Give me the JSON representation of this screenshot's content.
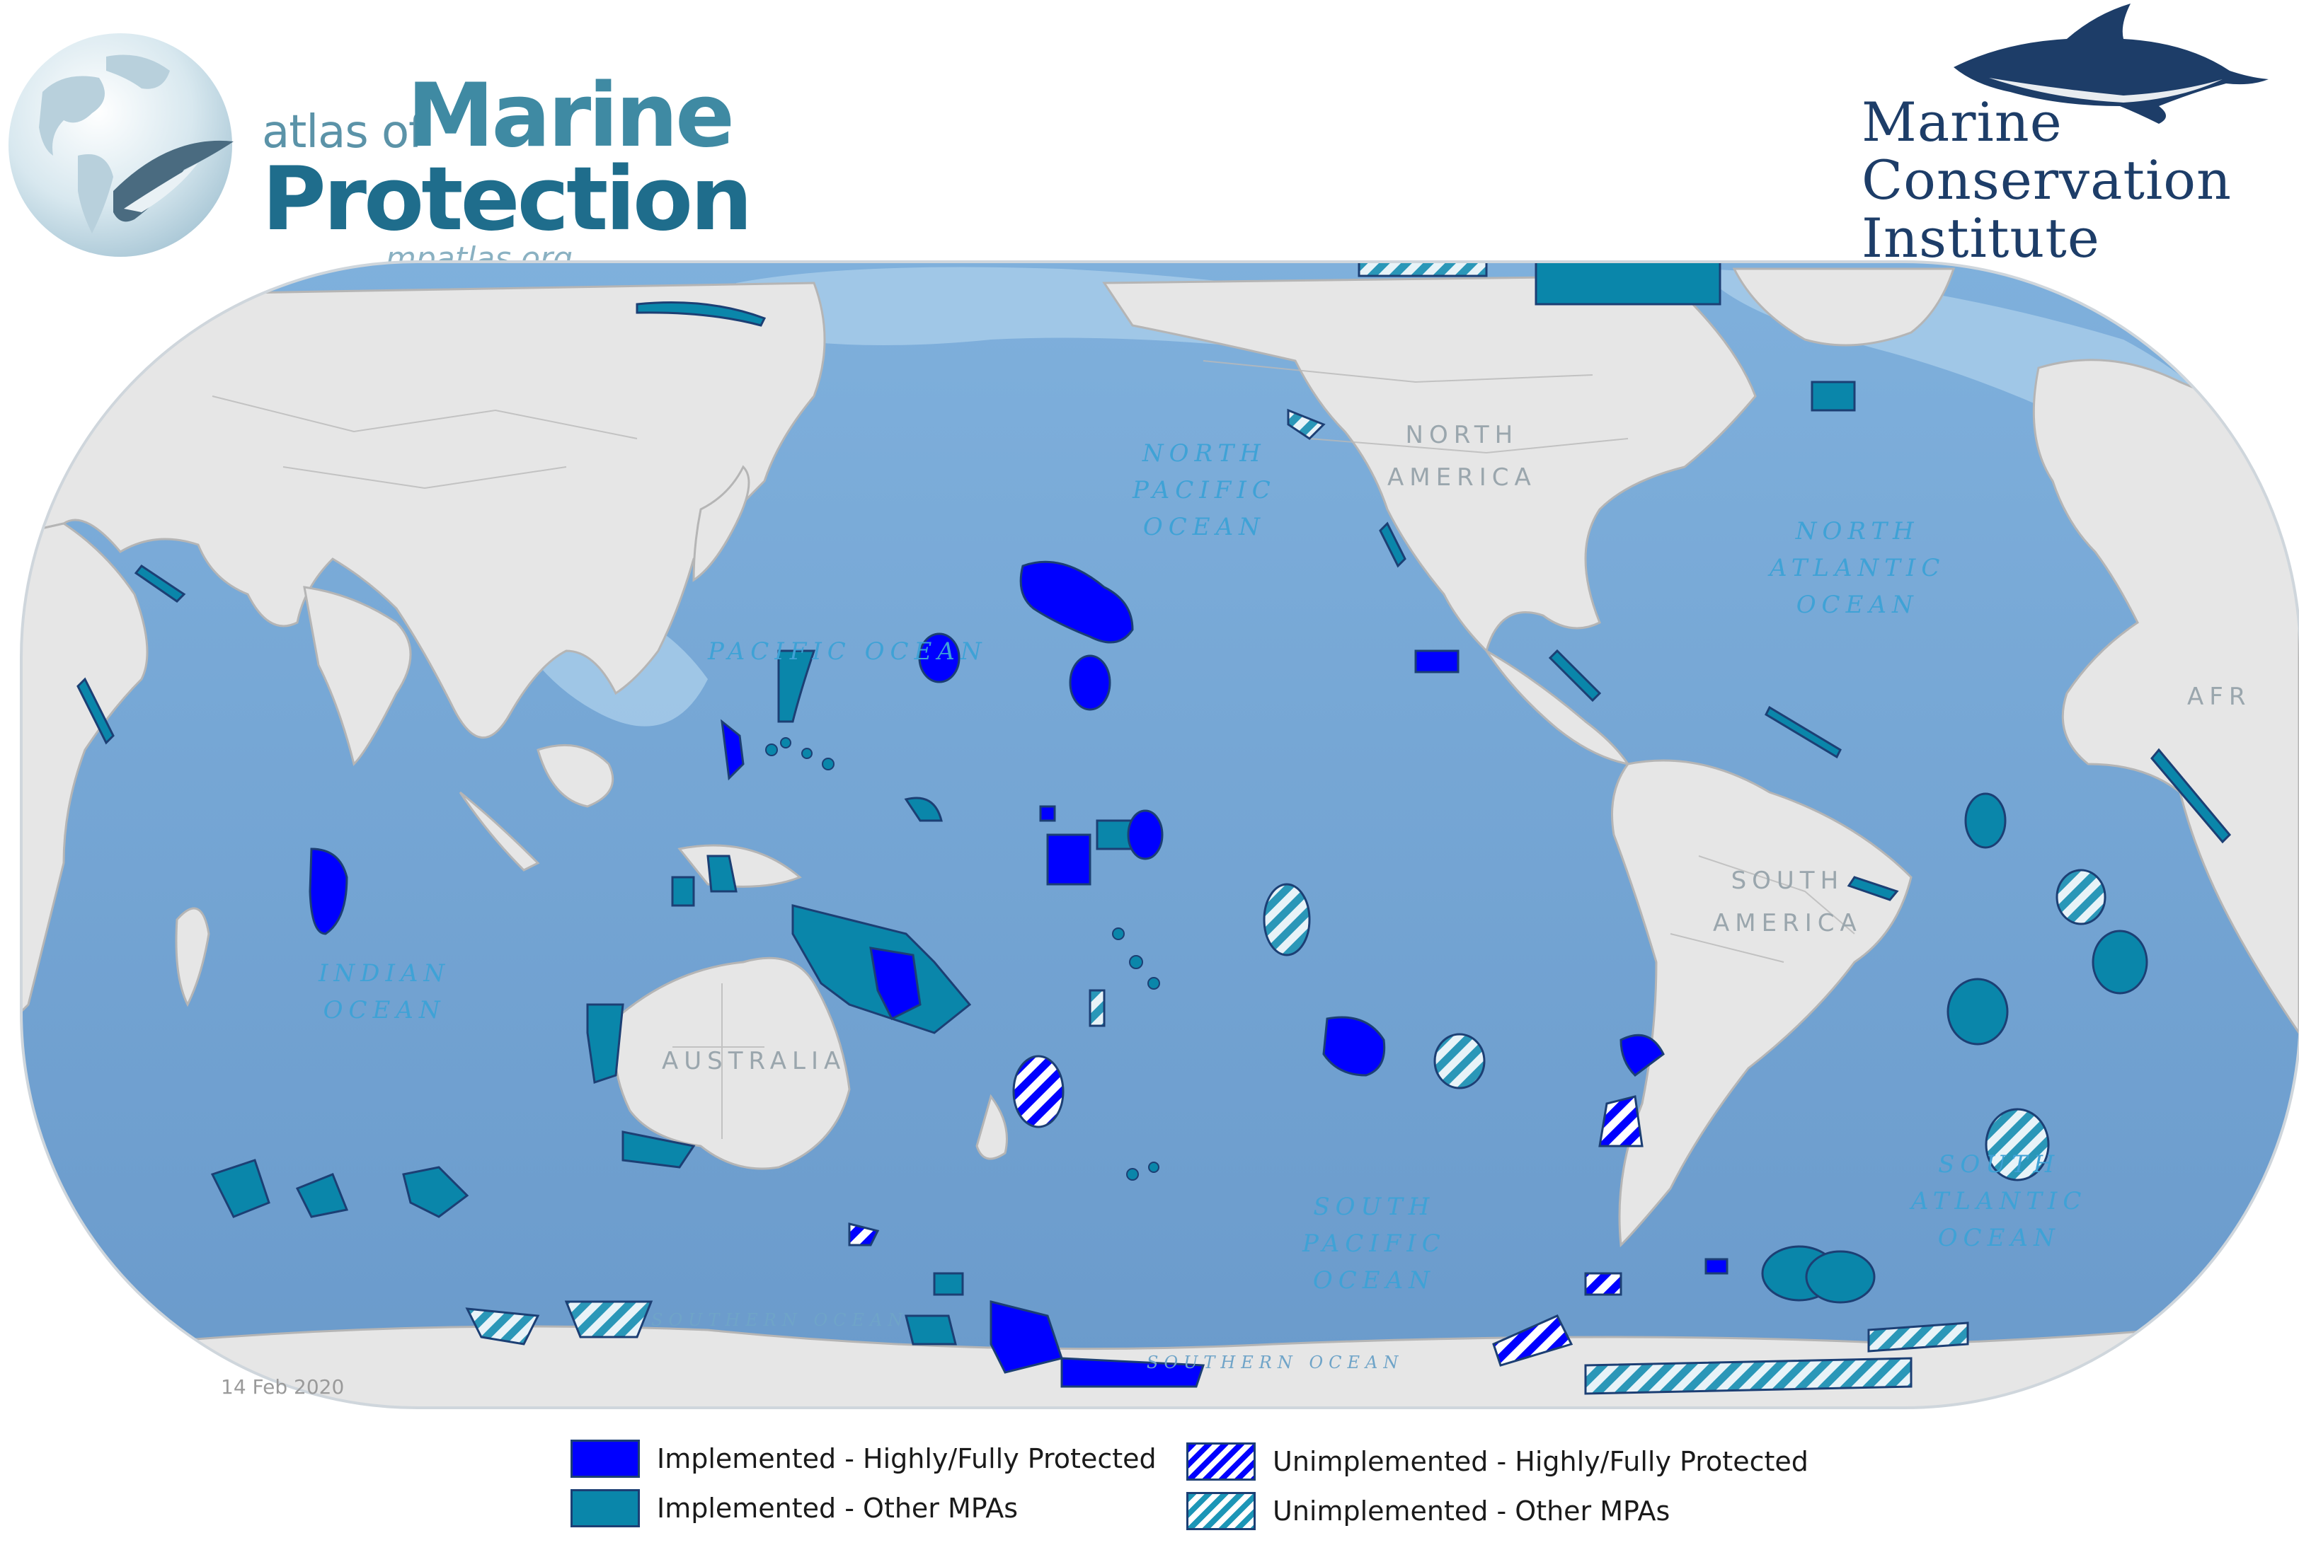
{
  "header": {
    "atlas_logo": {
      "line1_small": "atlas of",
      "line1_big": "Marine",
      "line2": "Protection",
      "url": "mpatlas.org"
    },
    "mci_logo": {
      "line1": "Marine",
      "line2": "Conservation",
      "line3": "Institute"
    }
  },
  "map": {
    "ocean_labels": {
      "north_pacific": "NORTH\nPACIFIC\nOCEAN",
      "pacific": "PACIFIC OCEAN",
      "north_atlantic": "NORTH\nATLANTIC\nOCEAN",
      "indian": "INDIAN\nOCEAN",
      "south_pacific": "SOUTH\nPACIFIC\nOCEAN",
      "south_atlantic": "SOUTH\nATLANTIC\nOCEAN",
      "southern": "SOUTHERN OCEAN",
      "southern_right": "SOUTHERN OCEAN"
    },
    "land_labels": {
      "north_america": "NORTH\nAMERICA",
      "south_america": "SOUTH\nAMERICA",
      "australia": "AUSTRALIA",
      "africa": "AFR"
    },
    "colors": {
      "ocean": "#7aa8d6",
      "ocean_deep": "#6e9dcc",
      "shallow": "#a8cdec",
      "land": "#e6e6e6",
      "border": "#b9b9b9",
      "implemented_high": "#0000ff",
      "implemented_other": "#0a86aa",
      "mpa_outline": "#1c3f74"
    }
  },
  "date": "14 Feb 2020",
  "legend": [
    {
      "label": "Implemented - Highly/Fully Protected",
      "style": "implemented-high"
    },
    {
      "label": "Unimplemented - Highly/Fully Protected",
      "style": "unimplemented-high"
    },
    {
      "label": "Implemented - Other MPAs",
      "style": "implemented-other"
    },
    {
      "label": "Unimplemented - Other MPAs",
      "style": "unimplemented-other"
    }
  ]
}
